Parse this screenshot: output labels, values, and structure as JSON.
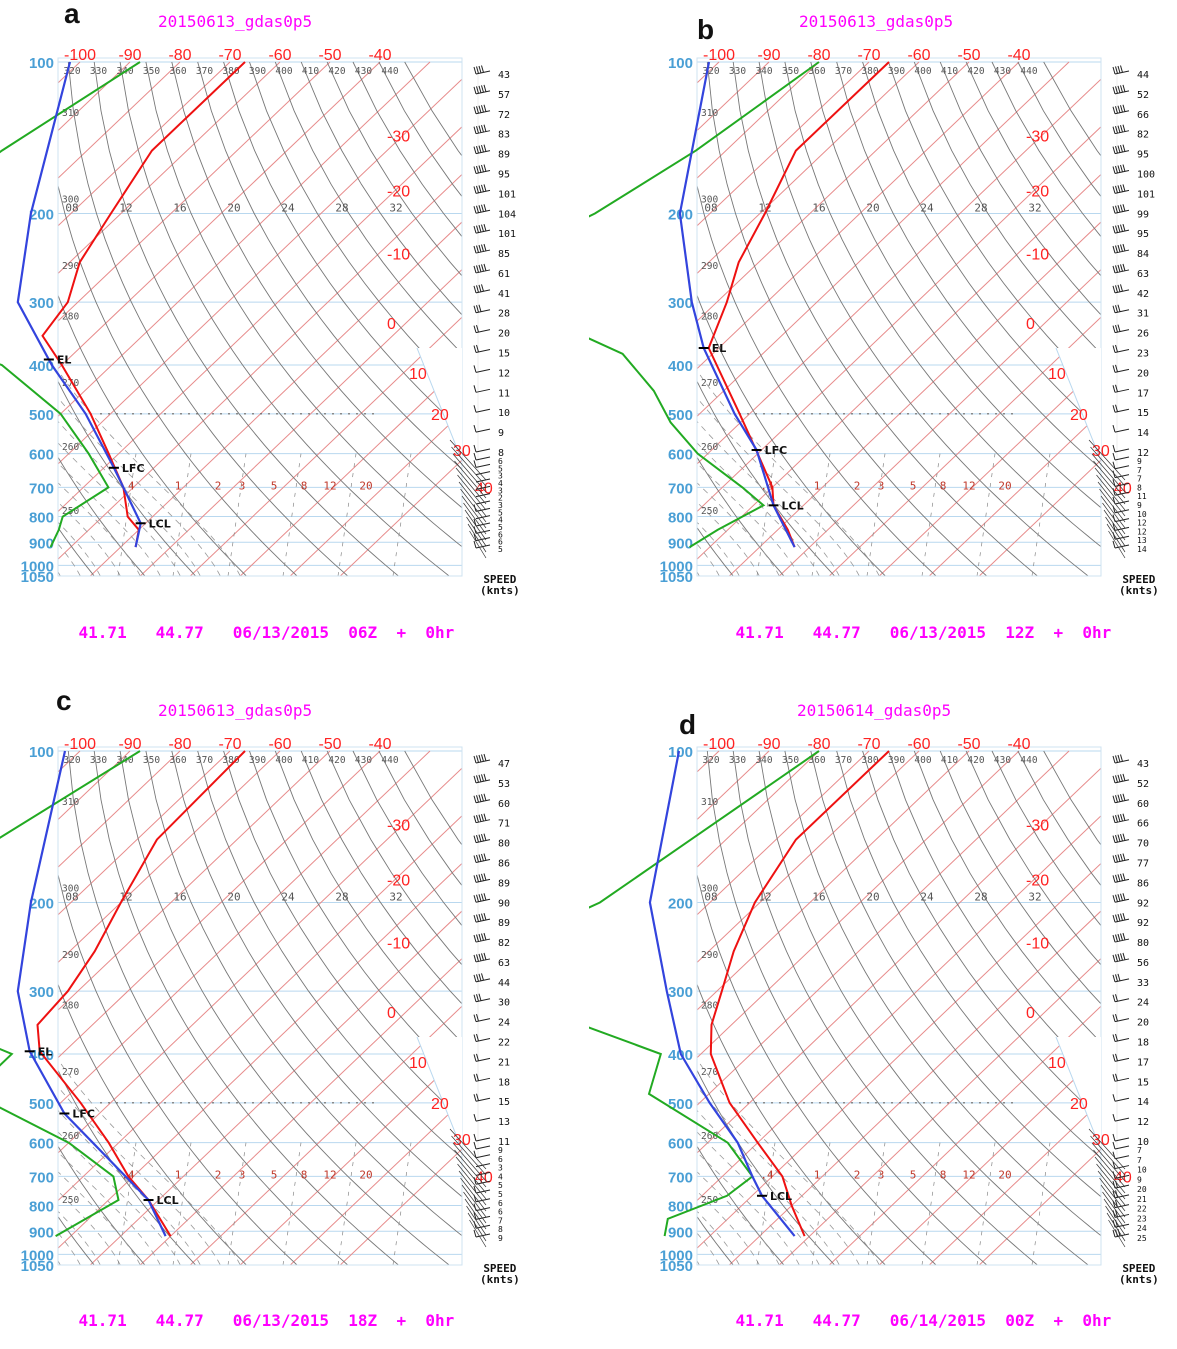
{
  "panels": [
    {
      "letter": "a",
      "title": "20150613_gdas0p5",
      "footer": {
        "lat": "41.71",
        "lon": "44.77",
        "date": "06/13/2015",
        "time": "06Z",
        "plus": "+",
        "fcst": "0hr"
      },
      "wind_speeds": [
        "43",
        "57",
        "72",
        "83",
        "89",
        "95",
        "101",
        "104",
        "101",
        "85",
        "61",
        "41",
        "28",
        "20",
        "15",
        "12",
        "11",
        "10",
        "9",
        "8",
        "6",
        "5",
        "3",
        "4",
        "3",
        "2",
        "3",
        "5",
        "4",
        "5",
        "6",
        "6",
        "5"
      ],
      "levels": [
        {
          "text": "EL",
          "p": 390
        },
        {
          "text": "LFC",
          "p": 640
        },
        {
          "text": "LCL",
          "p": 825
        }
      ]
    },
    {
      "letter": "b",
      "title": "20150613_gdas0p5",
      "footer": {
        "lat": "41.71",
        "lon": "44.77",
        "date": "06/13/2015",
        "time": "12Z",
        "plus": "+",
        "fcst": "0hr"
      },
      "wind_speeds": [
        "44",
        "52",
        "66",
        "82",
        "95",
        "100",
        "101",
        "99",
        "95",
        "84",
        "63",
        "42",
        "31",
        "26",
        "23",
        "20",
        "17",
        "15",
        "14",
        "12",
        "9",
        "7",
        "7",
        "8",
        "11",
        "9",
        "10",
        "12",
        "12",
        "13",
        "14"
      ],
      "levels": [
        {
          "text": "EL",
          "p": 370
        },
        {
          "text": "LFC",
          "p": 590
        },
        {
          "text": "LCL",
          "p": 760
        }
      ]
    },
    {
      "letter": "c",
      "title": "20150613_gdas0p5",
      "footer": {
        "lat": "41.71",
        "lon": "44.77",
        "date": "06/13/2015",
        "time": "18Z",
        "plus": "+",
        "fcst": "0hr"
      },
      "wind_speeds": [
        "47",
        "53",
        "60",
        "71",
        "80",
        "86",
        "89",
        "90",
        "89",
        "82",
        "63",
        "44",
        "30",
        "24",
        "22",
        "21",
        "18",
        "15",
        "13",
        "11",
        "9",
        "6",
        "3",
        "4",
        "5",
        "5",
        "6",
        "6",
        "7",
        "8",
        "9"
      ],
      "levels": [
        {
          "text": "EL",
          "p": 395
        },
        {
          "text": "LFC",
          "p": 525
        },
        {
          "text": "LCL",
          "p": 780
        }
      ]
    },
    {
      "letter": "d",
      "title": "20150614_gdas0p5",
      "footer": {
        "lat": "41.71",
        "lon": "44.77",
        "date": "06/14/2015",
        "time": "00Z",
        "plus": "+",
        "fcst": "0hr"
      },
      "wind_speeds": [
        "43",
        "52",
        "60",
        "66",
        "70",
        "77",
        "86",
        "92",
        "92",
        "80",
        "56",
        "33",
        "24",
        "20",
        "18",
        "17",
        "15",
        "14",
        "12",
        "10",
        "7",
        "7",
        "10",
        "9",
        "20",
        "21",
        "22",
        "23",
        "24",
        "25"
      ],
      "levels": [
        {
          "text": "LCL",
          "p": 765
        }
      ]
    }
  ],
  "speed_label": {
    "line1": "SPEED",
    "line2": "(knts)"
  },
  "colors": {
    "pressure": "#4a9fd5",
    "temperature_label": "#ff2222",
    "isotherm": "#e78b8b",
    "dry_adiabat": "#777777",
    "moist_adiabat": "#999999",
    "theta_label": "#555555",
    "mixing_ratio_label": "#c0392b",
    "temperature_profile": "#ee1111",
    "dewpoint_profile": "#22aa22",
    "parcel_profile": "#3344dd"
  },
  "chart_data": [
    {
      "type": "line",
      "subtype": "skew-T log-P sounding",
      "title": "20150613_gdas0p5",
      "valid": "06/13/2015 06Z + 0hr",
      "location": {
        "lat": 41.71,
        "lon": 44.77
      },
      "y_axis": {
        "scale": "log",
        "ticks": [
          100,
          200,
          300,
          400,
          500,
          600,
          700,
          800,
          900,
          1000,
          1050
        ]
      },
      "x_axis": {
        "isotherm_ticks_top": [
          -100,
          -90,
          -80,
          -70,
          -60,
          -50,
          -40
        ],
        "isotherm_ticks_right": [
          -30,
          -20,
          -10,
          0,
          10,
          20,
          30,
          40
        ]
      },
      "theta_ticks": [
        320,
        330,
        340,
        350,
        360,
        370,
        380,
        390,
        400,
        410,
        420,
        430,
        440
      ],
      "theta_ticks_left": [
        310,
        300,
        290,
        280,
        270,
        260,
        250
      ],
      "wet_bulb_theta_ticks": [
        "08",
        12,
        16,
        20,
        24,
        28,
        32
      ],
      "mixing_ratio_ticks": [
        ".4",
        1,
        2,
        3,
        5,
        8,
        12,
        20
      ],
      "series": [
        {
          "name": "temperature",
          "points": [
            [
              100,
              -67
            ],
            [
              150,
              -67
            ],
            [
              200,
              -62
            ],
            [
              250,
              -58
            ],
            [
              300,
              -52
            ],
            [
              350,
              -50
            ],
            [
              400,
              -40
            ],
            [
              500,
              -24
            ],
            [
              600,
              -12
            ],
            [
              700,
              -2
            ],
            [
              800,
              5
            ],
            [
              850,
              10
            ],
            [
              920,
              13
            ]
          ]
        },
        {
          "name": "dewpoint",
          "points": [
            [
              100,
              -88
            ],
            [
              150,
              -97
            ],
            [
              200,
              -101
            ],
            [
              250,
              -110
            ],
            [
              300,
              -104
            ],
            [
              350,
              -75
            ],
            [
              400,
              -52
            ],
            [
              500,
              -30
            ],
            [
              600,
              -16
            ],
            [
              700,
              -5
            ],
            [
              800,
              -8
            ],
            [
              850,
              -6
            ],
            [
              920,
              -4
            ]
          ]
        },
        {
          "name": "parcel",
          "points": [
            [
              100,
              -102
            ],
            [
              200,
              -78
            ],
            [
              300,
              -62
            ],
            [
              400,
              -42
            ],
            [
              500,
              -25
            ],
            [
              640,
              -8
            ],
            [
              825,
              9
            ],
            [
              920,
              13
            ]
          ]
        }
      ],
      "annotations": [
        "EL",
        "LFC",
        "LCL"
      ]
    },
    {
      "type": "line",
      "subtype": "skew-T log-P sounding",
      "title": "20150613_gdas0p5",
      "valid": "06/13/2015 12Z + 0hr",
      "location": {
        "lat": 41.71,
        "lon": 44.77
      },
      "y_axis": {
        "scale": "log",
        "ticks": [
          100,
          200,
          300,
          400,
          500,
          600,
          700,
          800,
          900,
          1000,
          1050
        ]
      },
      "series": [
        {
          "name": "temperature",
          "points": [
            [
              100,
              -66
            ],
            [
              150,
              -66
            ],
            [
              200,
              -59
            ],
            [
              250,
              -54
            ],
            [
              300,
              -48
            ],
            [
              370,
              -42
            ],
            [
              500,
              -22
            ],
            [
              600,
              -10
            ],
            [
              700,
              0
            ],
            [
              760,
              4
            ],
            [
              850,
              12
            ],
            [
              920,
              17
            ]
          ]
        },
        {
          "name": "dewpoint",
          "points": [
            [
              100,
              -80
            ],
            [
              150,
              -86
            ],
            [
              200,
              -93
            ],
            [
              250,
              -103
            ],
            [
              290,
              -105
            ],
            [
              330,
              -78
            ],
            [
              380,
              -58
            ],
            [
              450,
              -44
            ],
            [
              520,
              -34
            ],
            [
              600,
              -22
            ],
            [
              700,
              -6
            ],
            [
              760,
              2
            ],
            [
              850,
              -2
            ],
            [
              920,
              -4
            ]
          ]
        },
        {
          "name": "parcel",
          "points": [
            [
              100,
              -102
            ],
            [
              200,
              -76
            ],
            [
              300,
              -55
            ],
            [
              370,
              -43
            ],
            [
              500,
              -23
            ],
            [
              590,
              -11
            ],
            [
              760,
              4
            ],
            [
              920,
              17
            ]
          ]
        }
      ],
      "annotations": [
        "EL",
        "LFC",
        "LCL"
      ]
    },
    {
      "type": "line",
      "subtype": "skew-T log-P sounding",
      "title": "20150613_gdas0p5",
      "valid": "06/13/2015 18Z + 0hr",
      "location": {
        "lat": 41.71,
        "lon": 44.77
      },
      "y_axis": {
        "scale": "log",
        "ticks": [
          100,
          200,
          300,
          400,
          500,
          600,
          700,
          800,
          900,
          1000,
          1050
        ]
      },
      "series": [
        {
          "name": "temperature",
          "points": [
            [
              100,
              -67
            ],
            [
              150,
              -66
            ],
            [
              200,
              -60
            ],
            [
              250,
              -55
            ],
            [
              300,
              -52
            ],
            [
              350,
              -51
            ],
            [
              395,
              -45
            ],
            [
              500,
              -26
            ],
            [
              600,
              -12
            ],
            [
              700,
              -1
            ],
            [
              780,
              8
            ],
            [
              920,
              20
            ]
          ]
        },
        {
          "name": "dewpoint",
          "points": [
            [
              100,
              -88
            ],
            [
              150,
              -98
            ],
            [
              200,
              -102
            ],
            [
              250,
              -108
            ],
            [
              290,
              -113
            ],
            [
              350,
              -70
            ],
            [
              400,
              -50
            ],
            [
              450,
              -50
            ],
            [
              500,
              -44
            ],
            [
              600,
              -20
            ],
            [
              700,
              -4
            ],
            [
              780,
              2
            ],
            [
              920,
              -3
            ]
          ]
        },
        {
          "name": "parcel",
          "points": [
            [
              100,
              -103
            ],
            [
              200,
              -78
            ],
            [
              300,
              -62
            ],
            [
              395,
              -47
            ],
            [
              525,
              -27
            ],
            [
              780,
              8
            ],
            [
              920,
              19
            ]
          ]
        }
      ],
      "annotations": [
        "EL",
        "LFC",
        "LCL"
      ]
    },
    {
      "type": "line",
      "subtype": "skew-T log-P sounding",
      "title": "20150614_gdas0p5",
      "valid": "06/14/2015 00Z + 0hr",
      "location": {
        "lat": 41.71,
        "lon": 44.77
      },
      "y_axis": {
        "scale": "log",
        "ticks": [
          100,
          200,
          300,
          400,
          500,
          600,
          700,
          800,
          900,
          1000,
          1050
        ]
      },
      "series": [
        {
          "name": "temperature",
          "points": [
            [
              100,
              -66
            ],
            [
              150,
              -66
            ],
            [
              200,
              -61
            ],
            [
              250,
              -55
            ],
            [
              300,
              -49
            ],
            [
              350,
              -44
            ],
            [
              400,
              -38
            ],
            [
              500,
              -24
            ],
            [
              600,
              -10
            ],
            [
              700,
              2
            ],
            [
              800,
              10
            ],
            [
              920,
              19
            ]
          ]
        },
        {
          "name": "dewpoint",
          "points": [
            [
              100,
              -80
            ],
            [
              150,
              -87
            ],
            [
              200,
              -92
            ],
            [
              250,
              -103
            ],
            [
              300,
              -96
            ],
            [
              350,
              -70
            ],
            [
              400,
              -48
            ],
            [
              480,
              -42
            ],
            [
              600,
              -16
            ],
            [
              700,
              -4
            ],
            [
              765,
              -5
            ],
            [
              850,
              -12
            ],
            [
              920,
              -9
            ]
          ]
        },
        {
          "name": "parcel",
          "points": [
            [
              100,
              -108
            ],
            [
              200,
              -82
            ],
            [
              300,
              -60
            ],
            [
              400,
              -44
            ],
            [
              500,
              -28
            ],
            [
              600,
              -14
            ],
            [
              700,
              -4
            ],
            [
              765,
              2
            ],
            [
              920,
              17
            ]
          ]
        }
      ],
      "annotations": [
        "LCL"
      ]
    }
  ]
}
